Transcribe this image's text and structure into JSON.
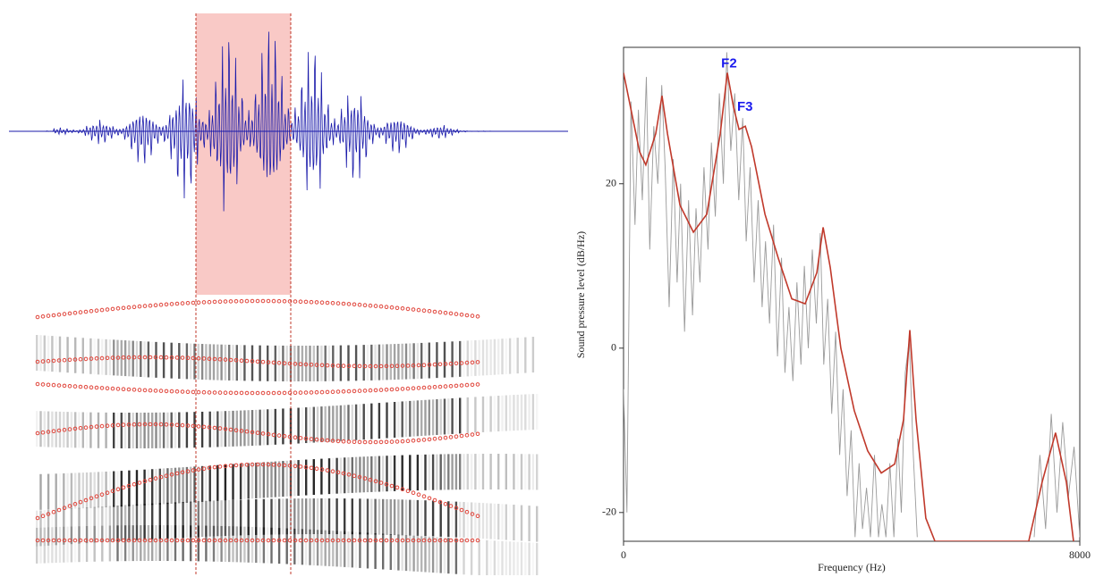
{
  "chart_data": {
    "type": "line",
    "xlabel": "Frequency (Hz)",
    "ylabel": "Sound pressure level (dB/Hz)",
    "xlim": [
      0,
      8000
    ],
    "xticks": [
      0,
      8000
    ],
    "ylim": [
      -23.5,
      36.6
    ],
    "yticks": [
      -20,
      0,
      20
    ],
    "series": [
      {
        "color": "#9a9a9a",
        "x": [
          0,
          60,
          130,
          200,
          260,
          330,
          400,
          460,
          530,
          600,
          670,
          730,
          800,
          870,
          940,
          1000,
          1070,
          1140,
          1210,
          1270,
          1340,
          1410,
          1480,
          1540,
          1610,
          1680,
          1750,
          1810,
          1880,
          1950,
          2020,
          2090,
          2150,
          2220,
          2290,
          2360,
          2430,
          2490,
          2560,
          2630,
          2700,
          2770,
          2830,
          2900,
          2970,
          3040,
          3110,
          3170,
          3240,
          3310,
          3380,
          3450,
          3510,
          3580,
          3650,
          3720,
          3790,
          3850,
          3920,
          3990,
          4060,
          4130,
          4190,
          4260,
          4330,
          4400,
          4470,
          4530,
          4600,
          4670,
          4740,
          4810,
          4870,
          4940,
          5010,
          5080,
          5150,
          6000,
          7200,
          7300,
          7400,
          7500,
          7600,
          7700,
          7800,
          7900,
          8000
        ],
        "values": [
          -5,
          -20,
          30,
          15,
          29,
          18,
          33,
          12,
          27,
          20,
          32,
          22,
          5,
          23,
          8,
          20,
          2,
          18,
          4,
          17,
          8,
          22,
          12,
          25,
          16,
          31,
          20,
          36,
          24,
          31,
          18,
          28,
          13,
          22,
          8,
          18,
          5,
          13,
          3,
          15,
          -1,
          11,
          -3,
          5,
          -4,
          8,
          -2,
          10,
          0,
          12,
          3,
          14,
          -2,
          6,
          -8,
          2,
          -13,
          -5,
          -18,
          -10,
          -23,
          -14,
          -22,
          -17,
          -23,
          -13,
          -23,
          -19,
          -23,
          -14,
          -23,
          -11,
          -20,
          -3,
          1,
          -13,
          -23,
          null,
          -23,
          -13,
          -22,
          -8,
          -20,
          -9,
          -18,
          -12,
          -23
        ]
      },
      {
        "color": "#c0392b",
        "x": [
          0,
          280,
          390,
          565,
          675,
          770,
          990,
          1225,
          1460,
          1695,
          1820,
          1930,
          2025,
          2135,
          2245,
          2480,
          2715,
          2950,
          3185,
          3390,
          3500,
          3625,
          3810,
          4045,
          4280,
          4520,
          4755,
          4910,
          5020,
          5130,
          5300,
          5460,
          7105,
          7340,
          7575,
          7765,
          7890
        ],
        "values": [
          33.5,
          23.9,
          22.3,
          26.1,
          30.7,
          26.1,
          17.4,
          14.1,
          16.3,
          26.1,
          33.5,
          29.3,
          26.6,
          27.0,
          24.5,
          16.3,
          10.9,
          6.0,
          5.4,
          9.2,
          14.7,
          9.8,
          0,
          -7.6,
          -12.5,
          -15.2,
          -14.1,
          -8.7,
          2.2,
          -8.7,
          -20.7,
          -23.5,
          -23.5,
          -16.3,
          -10.3,
          -16.3,
          -23.5
        ]
      }
    ],
    "annotations": [
      {
        "text": "F2",
        "x": 1850,
        "y": 34.6,
        "color": "#1a1aee"
      },
      {
        "text": "F3",
        "x": 2130,
        "y": 29.3,
        "color": "#1a1aee"
      }
    ]
  }
}
